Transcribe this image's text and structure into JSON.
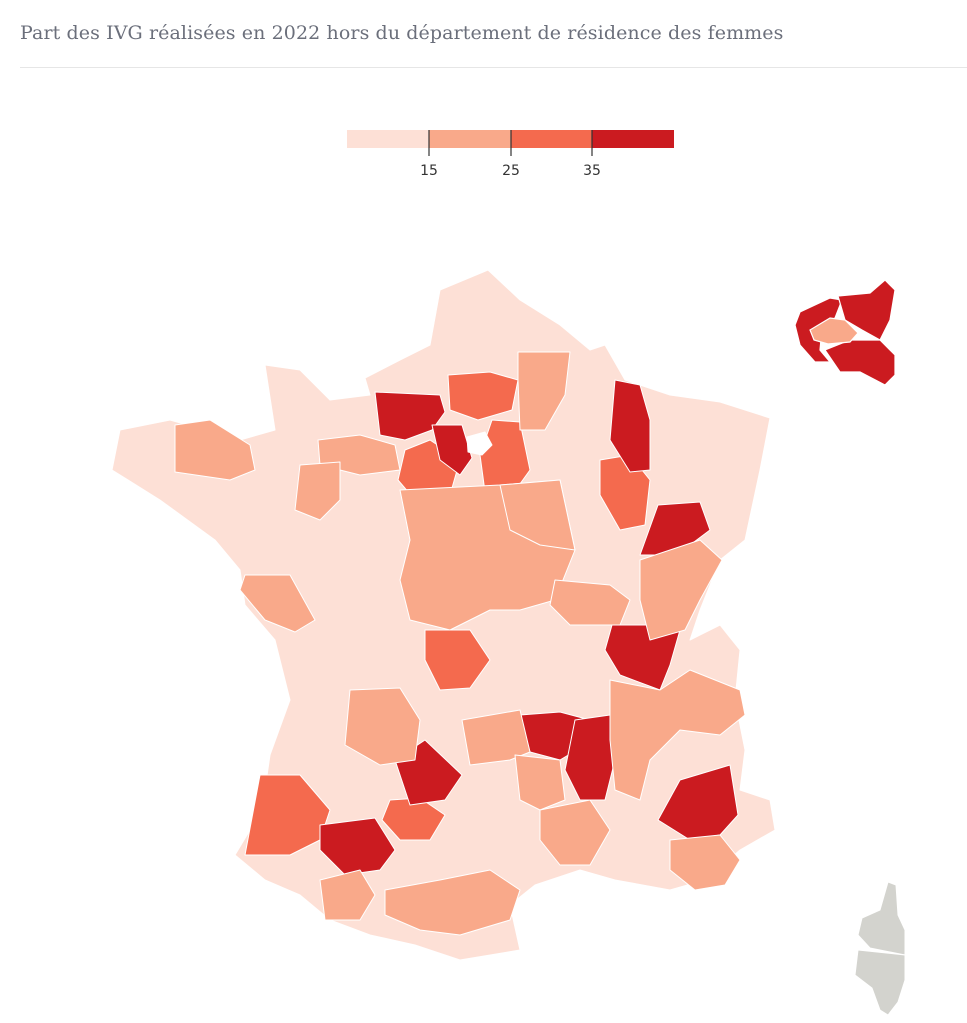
{
  "title": "Part des IVG réalisées en 2022 hors du département de résidence des femmes",
  "legend": {
    "thresholds": [
      "15",
      "25",
      "35"
    ],
    "colors": [
      "#fde0d6",
      "#f9a98a",
      "#f46a4e",
      "#cb1b20"
    ]
  },
  "colors": {
    "no_data": "#d3d3ce",
    "border": "#ffffff",
    "title": "#6b6f7b"
  }
}
